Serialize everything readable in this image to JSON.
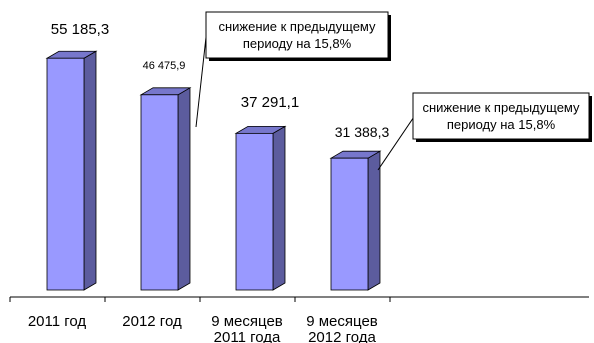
{
  "chart_data": {
    "type": "bar",
    "categories": [
      [
        "2011 год"
      ],
      [
        "2012 год"
      ],
      [
        "9 месяцев",
        "2011 года"
      ],
      [
        "9 месяцев",
        "2012 года"
      ]
    ],
    "values": [
      55185.3,
      46475.9,
      37291.1,
      31388.3
    ],
    "value_labels": [
      "55 185,3",
      "46 475,9",
      "37 291,1",
      "31 388,3"
    ],
    "ylim": [
      0,
      60000
    ],
    "grid": false,
    "legend": "none",
    "annotations": [
      {
        "lines": [
          "снижение к предыдущему",
          "периоду на 15,8%"
        ],
        "target_bar": 1
      },
      {
        "lines": [
          "снижение к предыдущему",
          "периоду на 15,8%"
        ],
        "target_bar": 3
      }
    ]
  },
  "colors": {
    "bar_front": "#9999ff",
    "bar_side": "#5c5c9e",
    "bar_top": "#7777cc",
    "bar_outline": "#000000",
    "text": "#000000",
    "axis": "#000000",
    "callout_fill": "#ffffff",
    "callout_border": "#000000"
  }
}
